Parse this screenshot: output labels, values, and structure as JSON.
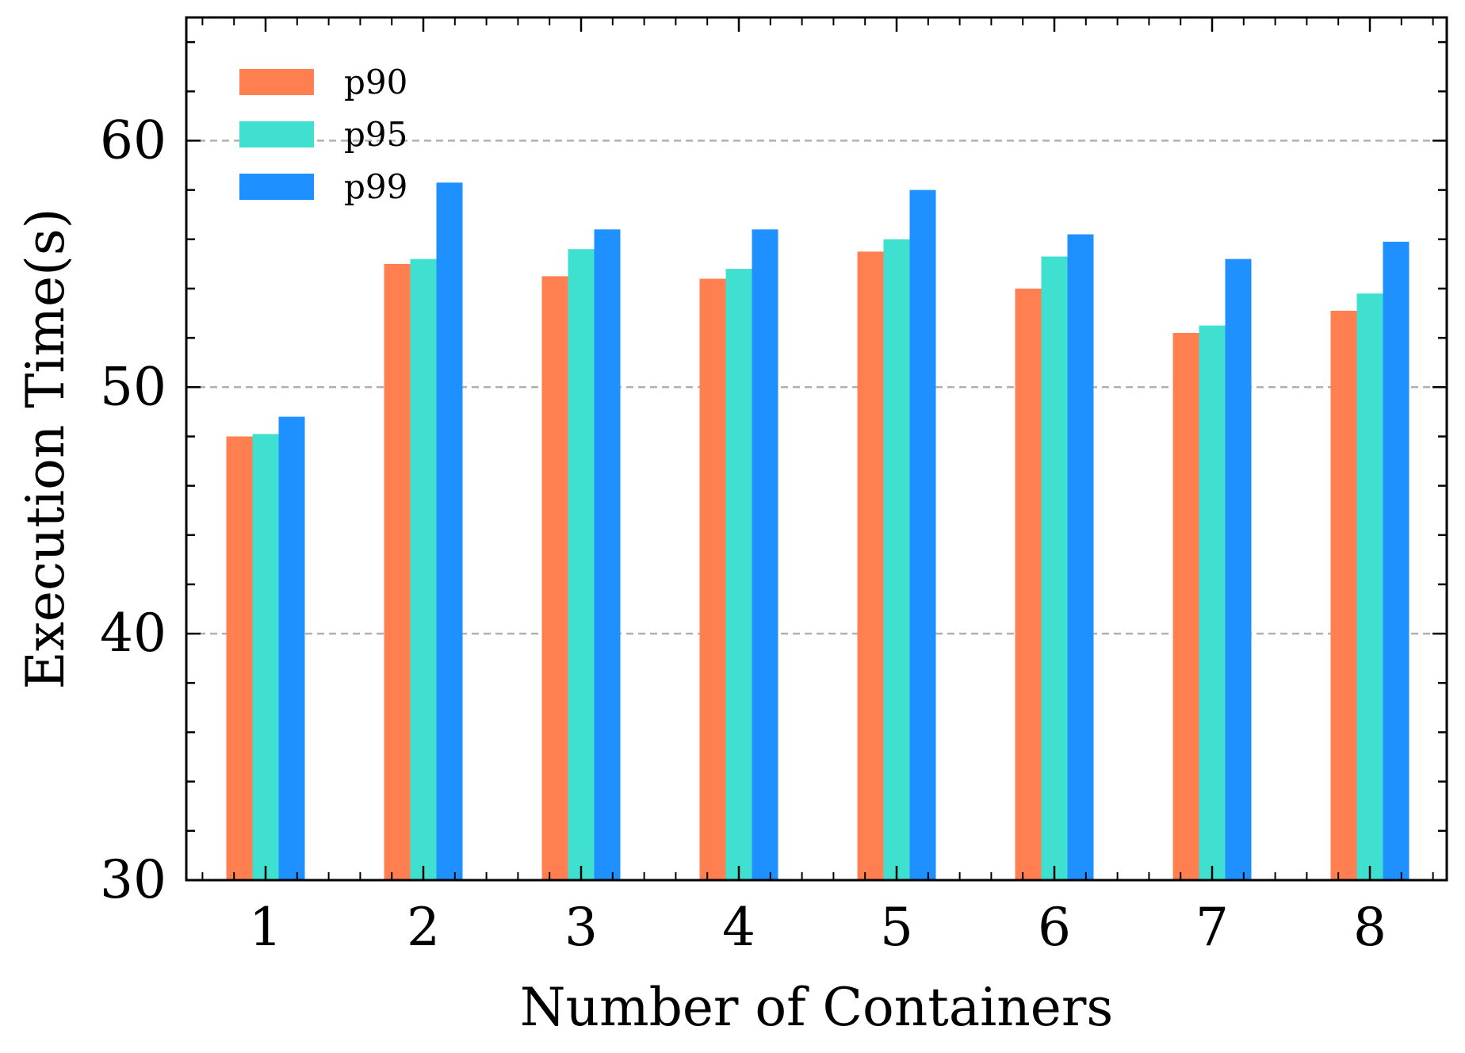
{
  "chart_data": {
    "type": "bar",
    "title": "",
    "xlabel": "Number of Containers",
    "ylabel": "Execution Time(s)",
    "categories": [
      "1",
      "2",
      "3",
      "4",
      "5",
      "6",
      "7",
      "8"
    ],
    "series": [
      {
        "name": "p90",
        "color": "#FF7F50",
        "values": [
          48.0,
          55.0,
          54.5,
          54.4,
          55.5,
          54.0,
          52.2,
          53.1
        ]
      },
      {
        "name": "p95",
        "color": "#40E0D0",
        "values": [
          48.1,
          55.2,
          55.6,
          54.8,
          56.0,
          55.3,
          52.5,
          53.8
        ]
      },
      {
        "name": "p99",
        "color": "#1E90FF",
        "values": [
          48.8,
          58.3,
          56.4,
          56.4,
          58.0,
          56.2,
          55.2,
          55.9
        ]
      }
    ],
    "ylim": [
      30,
      65
    ],
    "yticks": [
      "30",
      "40",
      "50",
      "60"
    ],
    "grid": "horizontal dashed at major ticks",
    "legend": "top-left"
  }
}
